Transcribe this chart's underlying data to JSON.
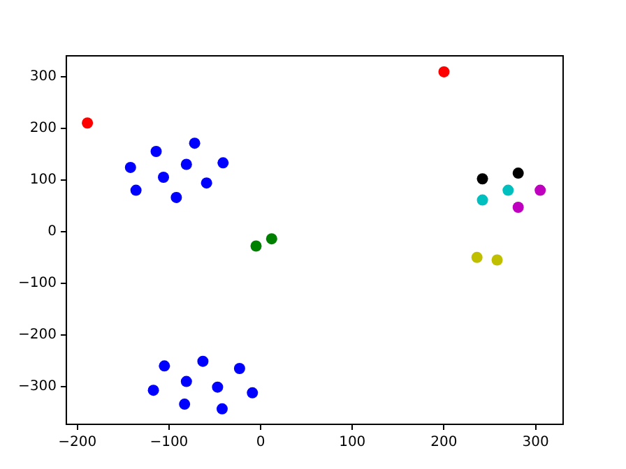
{
  "chart_data": {
    "type": "scatter",
    "xlim": [
      -212,
      330
    ],
    "ylim": [
      -373,
      340
    ],
    "xticks": [
      -200,
      -100,
      0,
      100,
      200,
      300
    ],
    "yticks": [
      -300,
      -200,
      -100,
      0,
      100,
      200,
      300
    ],
    "grid": false,
    "legend": false,
    "marker": "circle",
    "series": [
      {
        "color": "#ff0000",
        "x": [
          -189,
          200
        ],
        "values": [
          210,
          309
        ]
      },
      {
        "color": "#0000ff",
        "x": [
          -142,
          -114,
          -136,
          -106,
          -92,
          -81,
          -72,
          -59,
          -41,
          -105,
          -63,
          -23,
          -117,
          -81,
          -47,
          -9,
          -83,
          -42
        ],
        "values": [
          124,
          155,
          80,
          105,
          66,
          130,
          171,
          94,
          133,
          -260,
          -251,
          -265,
          -307,
          -290,
          -301,
          -312,
          -334,
          -343
        ]
      },
      {
        "color": "#008000",
        "x": [
          -5,
          12
        ],
        "values": [
          -28,
          -14
        ]
      },
      {
        "color": "#000000",
        "x": [
          242,
          281
        ],
        "values": [
          102,
          113
        ]
      },
      {
        "color": "#00bfbf",
        "x": [
          242,
          270
        ],
        "values": [
          61,
          80
        ]
      },
      {
        "color": "#bf00bf",
        "x": [
          305,
          281
        ],
        "values": [
          80,
          47
        ]
      },
      {
        "color": "#bfbf00",
        "x": [
          236,
          258
        ],
        "values": [
          -50,
          -55
        ]
      }
    ]
  }
}
